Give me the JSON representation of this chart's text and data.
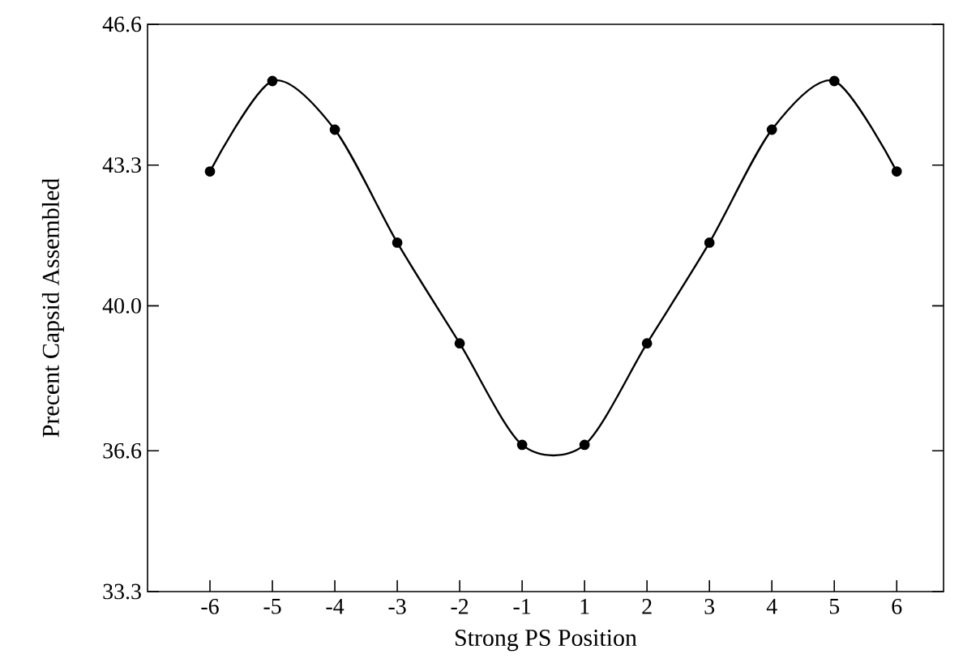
{
  "chart_data": {
    "type": "line",
    "xlabel": "Strong PS Position",
    "ylabel": "Precent Capsid Assembled",
    "categories": [
      "-6",
      "-5",
      "-4",
      "-3",
      "-2",
      "-1",
      "1",
      "2",
      "3",
      "4",
      "5",
      "6"
    ],
    "series": [
      {
        "color": "#000000",
        "values": [
          43.15,
          45.27,
          44.13,
          41.48,
          39.12,
          36.74,
          36.74,
          39.12,
          41.48,
          44.13,
          45.27,
          43.15
        ]
      }
    ],
    "ylim": [
      33.3,
      46.6
    ],
    "yticks": [
      33.3,
      36.6,
      {
        "value": 40,
        "label": "40.0"
      },
      43.3,
      46.6
    ],
    "grid": false,
    "marker": "circle",
    "line_style": "solid"
  }
}
